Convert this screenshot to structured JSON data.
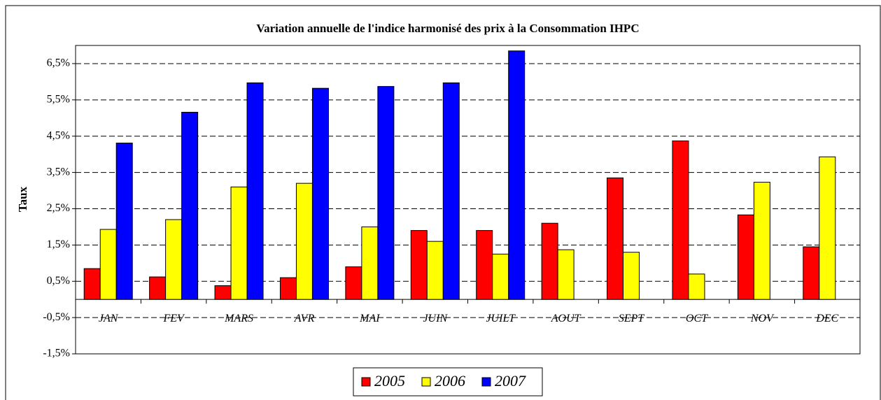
{
  "chart_data": {
    "type": "bar",
    "title": "Variation annuelle de l'indice harmonisé des prix à la Consommation IHPC",
    "y_label": "Taux",
    "categories": [
      "JAN",
      "FEV",
      "MARS",
      "AVR",
      "MAI",
      "JUIN",
      "JUILT",
      "AOUT",
      "SEPT",
      "OCT",
      "NOV",
      "DEC"
    ],
    "series": [
      {
        "name": "2005",
        "color": "#ff0000",
        "values": [
          0.85,
          0.62,
          0.38,
          0.6,
          0.9,
          1.9,
          1.9,
          2.1,
          3.35,
          4.37,
          2.33,
          1.45
        ]
      },
      {
        "name": "2006",
        "color": "#ffff00",
        "values": [
          1.93,
          2.2,
          3.1,
          3.2,
          2.0,
          1.6,
          1.25,
          1.37,
          1.3,
          0.7,
          3.23,
          3.93
        ]
      },
      {
        "name": "2007",
        "color": "#0000ff",
        "values": [
          4.31,
          5.16,
          5.97,
          5.82,
          5.87,
          5.97,
          6.85,
          null,
          null,
          null,
          null,
          null
        ]
      }
    ],
    "ylim": [
      -1.5,
      7
    ],
    "yticks": [
      {
        "value": -1.5,
        "label": "-1,5%"
      },
      {
        "value": -0.5,
        "label": "-0,5%"
      },
      {
        "value": 0.5,
        "label": "0,5%"
      },
      {
        "value": 1.5,
        "label": "1,5%"
      },
      {
        "value": 2.5,
        "label": "2,5%"
      },
      {
        "value": 3.5,
        "label": "3,5%"
      },
      {
        "value": 4.5,
        "label": "4,5%"
      },
      {
        "value": 5.5,
        "label": "5,5%"
      },
      {
        "value": 6.5,
        "label": "6,5%"
      }
    ],
    "grid": true,
    "legend": "bottom"
  }
}
